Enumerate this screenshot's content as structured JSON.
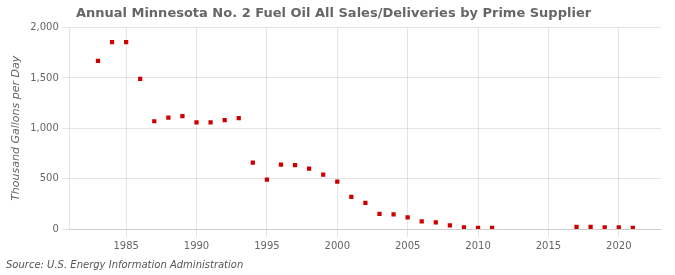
{
  "chart_data": {
    "type": "scatter",
    "title": "Annual Minnesota No. 2 Fuel Oil All Sales/Deliveries by Prime Supplier",
    "ylabel": "Thousand Gallons per Day",
    "annotation": "Source: U.S. Energy Information Administration",
    "x": [
      1983,
      1984,
      1985,
      1986,
      1987,
      1988,
      1989,
      1990,
      1991,
      1992,
      1993,
      1994,
      1995,
      1996,
      1997,
      1998,
      1999,
      2000,
      2001,
      2002,
      2003,
      2004,
      2005,
      2006,
      2007,
      2008,
      2009,
      2010,
      2011,
      2017,
      2018,
      2019,
      2020,
      2021
    ],
    "values": [
      1670,
      1855,
      1855,
      1490,
      1070,
      1105,
      1120,
      1060,
      1060,
      1080,
      1100,
      660,
      490,
      640,
      635,
      600,
      540,
      470,
      320,
      260,
      150,
      145,
      115,
      75,
      65,
      35,
      15,
      10,
      10,
      20,
      20,
      15,
      15,
      10
    ],
    "color": "#cc0000",
    "marker": "square",
    "xlim": [
      1981,
      2023
    ],
    "ylim": [
      0,
      2000
    ],
    "xticks": [
      1985,
      1990,
      1995,
      2000,
      2005,
      2010,
      2015,
      2020
    ],
    "yticks": [
      0,
      500,
      {
        "value": 1000,
        "label": "1,000"
      },
      {
        "value": 1500,
        "label": "1,500"
      },
      {
        "value": 2000,
        "label": "2,000"
      }
    ],
    "grid": true
  }
}
